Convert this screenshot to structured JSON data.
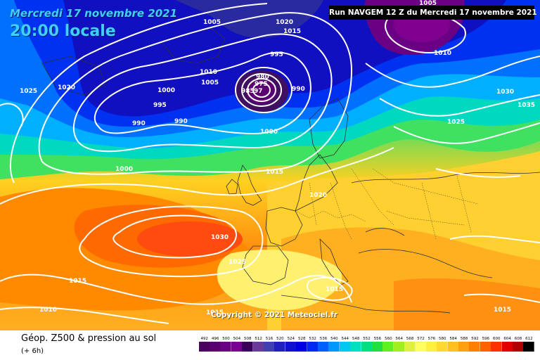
{
  "header": {
    "date_title": "Mercredi 17 novembre 2021",
    "time_title": "20:00 locale",
    "run_banner": "Run NAVGEM 12 Z du Mercredi 17 novembre 2021"
  },
  "footer": {
    "title": "Géop. Z500 & pression au sol",
    "subtitle": "(+ 6h)",
    "copyright": "Copyright © 2021 Meteociel.fr"
  },
  "legend": [
    {
      "label": "492",
      "color": "#4b0060"
    },
    {
      "label": "496",
      "color": "#580070"
    },
    {
      "label": "500",
      "color": "#6a0082"
    },
    {
      "label": "504",
      "color": "#7a0094"
    },
    {
      "label": "508",
      "color": "#3a005a"
    },
    {
      "label": "512",
      "color": "#6a3a9a"
    },
    {
      "label": "516",
      "color": "#4040b0"
    },
    {
      "label": "520",
      "color": "#2020c0"
    },
    {
      "label": "524",
      "color": "#1010d0"
    },
    {
      "label": "528",
      "color": "#0000e0"
    },
    {
      "label": "532",
      "color": "#0028f0"
    },
    {
      "label": "536",
      "color": "#0060ff"
    },
    {
      "label": "540",
      "color": "#0098ff"
    },
    {
      "label": "544",
      "color": "#00c8f0"
    },
    {
      "label": "548",
      "color": "#00e0c0"
    },
    {
      "label": "552",
      "color": "#00e080"
    },
    {
      "label": "556",
      "color": "#20e040"
    },
    {
      "label": "560",
      "color": "#60f020"
    },
    {
      "label": "564",
      "color": "#a0f020"
    },
    {
      "label": "568",
      "color": "#e0f040"
    },
    {
      "label": "572",
      "color": "#ffff60"
    },
    {
      "label": "576",
      "color": "#fff040"
    },
    {
      "label": "580",
      "color": "#ffd830"
    },
    {
      "label": "584",
      "color": "#ffc020"
    },
    {
      "label": "588",
      "color": "#ffa010"
    },
    {
      "label": "592",
      "color": "#ff8000"
    },
    {
      "label": "596",
      "color": "#ff6000"
    },
    {
      "label": "600",
      "color": "#ff3000"
    },
    {
      "label": "604",
      "color": "#e00000"
    },
    {
      "label": "608",
      "color": "#b00000"
    },
    {
      "label": "612",
      "color": "#000000"
    }
  ],
  "map_labels": [
    {
      "name": "isobar-label",
      "text": "1005"
    },
    {
      "name": "isobar-label",
      "text": "1020"
    },
    {
      "name": "isobar-label",
      "text": "1015"
    },
    {
      "name": "isobar-label",
      "text": "995"
    },
    {
      "name": "isobar-label",
      "text": "980"
    },
    {
      "name": "isobar-label",
      "text": "975"
    },
    {
      "name": "isobar-label",
      "text": "985"
    },
    {
      "name": "isobar-label",
      "text": "97"
    },
    {
      "name": "isobar-label",
      "text": "990"
    },
    {
      "name": "isobar-label",
      "text": "1000"
    },
    {
      "name": "isobar-label",
      "text": "1010"
    },
    {
      "name": "isobar-label",
      "text": "1005"
    },
    {
      "name": "isobar-label",
      "text": "1000"
    },
    {
      "name": "isobar-label",
      "text": "995"
    },
    {
      "name": "isobar-label",
      "text": "990"
    },
    {
      "name": "isobar-label",
      "text": "990"
    },
    {
      "name": "isobar-label",
      "text": "1025"
    },
    {
      "name": "isobar-label",
      "text": "1020"
    },
    {
      "name": "isobar-label",
      "text": "1000"
    },
    {
      "name": "isobar-label",
      "text": "1015"
    },
    {
      "name": "isobar-label",
      "text": "1020"
    },
    {
      "name": "isobar-label",
      "text": "1030"
    },
    {
      "name": "isobar-label",
      "text": "1025"
    },
    {
      "name": "isobar-label",
      "text": "1015"
    },
    {
      "name": "isobar-label",
      "text": "1010"
    },
    {
      "name": "isobar-label",
      "text": "1015"
    },
    {
      "name": "isobar-label",
      "text": "1015"
    },
    {
      "name": "isobar-label",
      "text": "1005"
    },
    {
      "name": "isobar-label",
      "text": "1010"
    },
    {
      "name": "isobar-label",
      "text": "1030"
    },
    {
      "name": "isobar-label",
      "text": "1035"
    },
    {
      "name": "isobar-label",
      "text": "1025"
    },
    {
      "name": "isobar-label",
      "text": "1015"
    }
  ]
}
